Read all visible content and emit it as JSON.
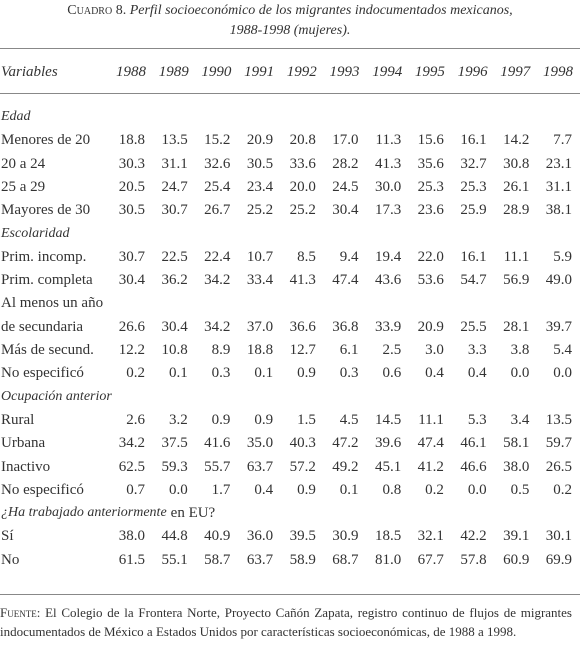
{
  "header": {
    "label": "Cuadro 8.",
    "title_line1": "Perfil socioeconómico de los migrantes indocumentados mexicanos,",
    "title_line2": "1988-1998 (mujeres)."
  },
  "table": {
    "columns": [
      "Variables",
      "1988",
      "1989",
      "1990",
      "1991",
      "1992",
      "1993",
      "1994",
      "1995",
      "1996",
      "1997",
      "1998"
    ],
    "rows": [
      {
        "section": "Edad"
      },
      {
        "label": "Menores de 20",
        "values": [
          "18.8",
          "13.5",
          "15.2",
          "20.9",
          "20.8",
          "17.0",
          "11.3",
          "15.6",
          "16.1",
          "14.2",
          "7.7"
        ]
      },
      {
        "label": "20 a 24",
        "values": [
          "30.3",
          "31.1",
          "32.6",
          "30.5",
          "33.6",
          "28.2",
          "41.3",
          "35.6",
          "32.7",
          "30.8",
          "23.1"
        ]
      },
      {
        "label": "25 a 29",
        "values": [
          "20.5",
          "24.7",
          "25.4",
          "23.4",
          "20.0",
          "24.5",
          "30.0",
          "25.3",
          "25.3",
          "26.1",
          "31.1"
        ]
      },
      {
        "label": "Mayores de 30",
        "values": [
          "30.5",
          "30.7",
          "26.7",
          "25.2",
          "25.2",
          "30.4",
          "17.3",
          "23.6",
          "25.9",
          "28.9",
          "38.1"
        ]
      },
      {
        "section": "Escolaridad"
      },
      {
        "label": "Prim. incomp.",
        "values": [
          "30.7",
          "22.5",
          "22.4",
          "10.7",
          "8.5",
          "9.4",
          "19.4",
          "22.0",
          "16.1",
          "11.1",
          "5.9"
        ]
      },
      {
        "label": "Prim. completa",
        "values": [
          "30.4",
          "36.2",
          "34.2",
          "33.4",
          "41.3",
          "47.4",
          "43.6",
          "53.6",
          "54.7",
          "56.9",
          "49.0"
        ]
      },
      {
        "label": "Al menos un año"
      },
      {
        "label": "de secundaria",
        "values": [
          "26.6",
          "30.4",
          "34.2",
          "37.0",
          "36.6",
          "36.8",
          "33.9",
          "20.9",
          "25.5",
          "28.1",
          "39.7"
        ]
      },
      {
        "label": "Más de secund.",
        "values": [
          "12.2",
          "10.8",
          "8.9",
          "18.8",
          "12.7",
          "6.1",
          "2.5",
          "3.0",
          "3.3",
          "3.8",
          "5.4"
        ]
      },
      {
        "label": "No especificó",
        "values": [
          "0.2",
          "0.1",
          "0.3",
          "0.1",
          "0.9",
          "0.3",
          "0.6",
          "0.4",
          "0.4",
          "0.0",
          "0.0"
        ]
      },
      {
        "section": "Ocupación anterior"
      },
      {
        "label": "Rural",
        "values": [
          "2.6",
          "3.2",
          "0.9",
          "0.9",
          "1.5",
          "4.5",
          "14.5",
          "11.1",
          "5.3",
          "3.4",
          "13.5"
        ]
      },
      {
        "label": "Urbana",
        "values": [
          "34.2",
          "37.5",
          "41.6",
          "35.0",
          "40.3",
          "47.2",
          "39.6",
          "47.4",
          "46.1",
          "58.1",
          "59.7"
        ]
      },
      {
        "label": "Inactivo",
        "values": [
          "62.5",
          "59.3",
          "55.7",
          "63.7",
          "57.2",
          "49.2",
          "45.1",
          "41.2",
          "46.6",
          "38.0",
          "26.5"
        ]
      },
      {
        "label": "No especificó",
        "values": [
          "0.7",
          "0.0",
          "1.7",
          "0.4",
          "0.9",
          "0.1",
          "0.8",
          "0.2",
          "0.0",
          "0.5",
          "0.2"
        ]
      },
      {
        "section": "¿Ha trabajado anteriormente",
        "section_upright": "en EU?"
      },
      {
        "label": "Sí",
        "values": [
          "38.0",
          "44.8",
          "40.9",
          "36.0",
          "39.5",
          "30.9",
          "18.5",
          "32.1",
          "42.2",
          "39.1",
          "30.1"
        ]
      },
      {
        "label": "No",
        "values": [
          "61.5",
          "55.1",
          "58.7",
          "63.7",
          "58.9",
          "68.7",
          "81.0",
          "67.7",
          "57.8",
          "60.9",
          "69.9"
        ]
      }
    ]
  },
  "footer": {
    "label": "Fuente:",
    "text": "El Colegio de la Frontera Norte, Proyecto Cañón Zapata, registro continuo de flujos de migrantes indocumentados de México a Estados Unidos por características socioeconómicas, de 1988 a 1998."
  }
}
